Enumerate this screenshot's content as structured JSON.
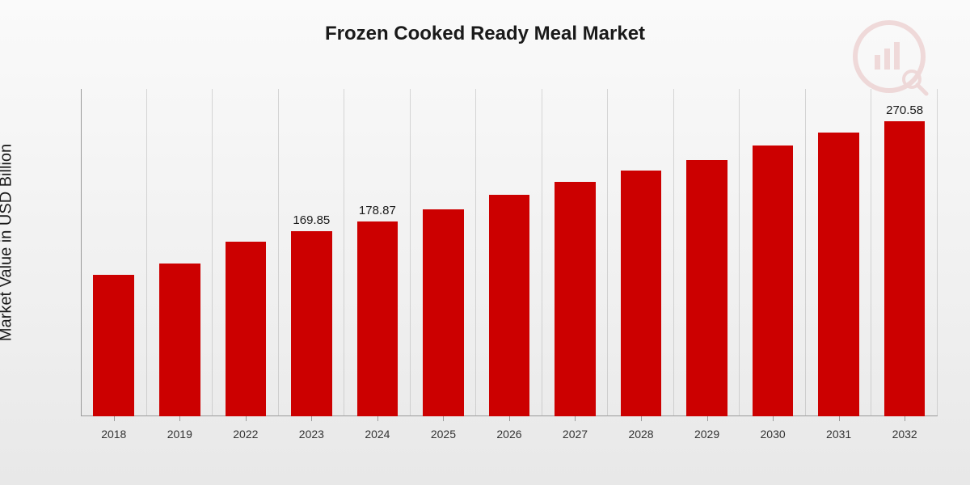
{
  "chart": {
    "type": "bar",
    "title": "Frozen Cooked Ready Meal Market",
    "title_fontsize": 24,
    "y_axis_label": "Market Value in USD Billion",
    "y_axis_label_fontsize": 20,
    "categories": [
      "2018",
      "2019",
      "2022",
      "2023",
      "2024",
      "2025",
      "2026",
      "2027",
      "2028",
      "2029",
      "2030",
      "2031",
      "2032"
    ],
    "values": [
      130,
      140,
      160,
      169.85,
      178.87,
      190,
      203,
      215,
      225,
      235,
      248,
      260,
      270.58
    ],
    "visible_value_labels": {
      "3": "169.85",
      "4": "178.87",
      "12": "270.58"
    },
    "bar_color": "#cc0000",
    "bar_width_ratio": 0.62,
    "background_gradient": [
      "#fafafa",
      "#f0f0f0",
      "#e8e8e8"
    ],
    "grid_color": "rgba(170,170,170,0.45)",
    "axis_color": "#9a9a9a",
    "x_label_fontsize": 14,
    "bar_label_fontsize": 15,
    "ylim": [
      0,
      300
    ],
    "text_color": "#1a1a1a",
    "watermark_opacity": 0.12
  }
}
